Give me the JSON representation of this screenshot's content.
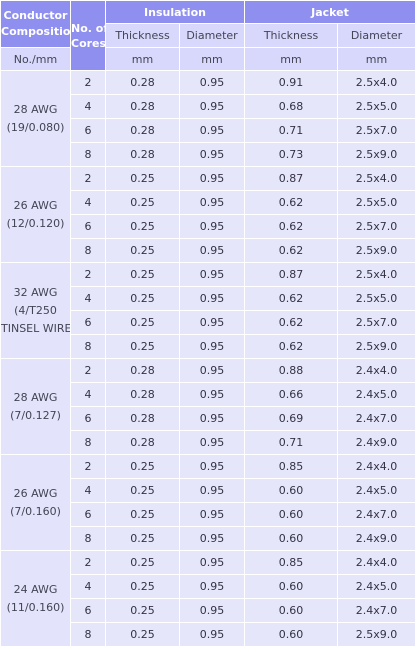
{
  "headers": {
    "conductor_line1": "Conductor",
    "conductor_line2": "Composition",
    "cores_line1": "No. of",
    "cores_line2": "Cores",
    "insulation": "Insulation",
    "jacket": "Jacket",
    "ins_thickness": "Thickness",
    "ins_diameter": "Diameter",
    "jac_thickness": "Thickness",
    "jac_diameter": "Diameter",
    "unit_conductor": "No./mm",
    "unit_ins_thickness": "mm",
    "unit_ins_diameter": "mm",
    "unit_jac_thickness": "mm",
    "unit_jac_diameter": "mm"
  },
  "groups": [
    {
      "label_lines": [
        "28 AWG",
        "(19/0.080)"
      ],
      "rows": [
        {
          "cores": "2",
          "ins_thickness": "0.28",
          "ins_diameter": "0.95",
          "jac_thickness": "0.91",
          "jac_diameter": "2.5x4.0"
        },
        {
          "cores": "4",
          "ins_thickness": "0.28",
          "ins_diameter": "0.95",
          "jac_thickness": "0.68",
          "jac_diameter": "2.5x5.0"
        },
        {
          "cores": "6",
          "ins_thickness": "0.28",
          "ins_diameter": "0.95",
          "jac_thickness": "0.71",
          "jac_diameter": "2.5x7.0"
        },
        {
          "cores": "8",
          "ins_thickness": "0.28",
          "ins_diameter": "0.95",
          "jac_thickness": "0.73",
          "jac_diameter": "2.5x9.0"
        }
      ]
    },
    {
      "label_lines": [
        "26 AWG",
        "(12/0.120)"
      ],
      "rows": [
        {
          "cores": "2",
          "ins_thickness": "0.25",
          "ins_diameter": "0.95",
          "jac_thickness": "0.87",
          "jac_diameter": "2.5x4.0"
        },
        {
          "cores": "4",
          "ins_thickness": "0.25",
          "ins_diameter": "0.95",
          "jac_thickness": "0.62",
          "jac_diameter": "2.5x5.0"
        },
        {
          "cores": "6",
          "ins_thickness": "0.25",
          "ins_diameter": "0.95",
          "jac_thickness": "0.62",
          "jac_diameter": "2.5x7.0"
        },
        {
          "cores": "8",
          "ins_thickness": "0.25",
          "ins_diameter": "0.95",
          "jac_thickness": "0.62",
          "jac_diameter": "2.5x9.0"
        }
      ]
    },
    {
      "label_lines": [
        "32 AWG",
        "(4/T250",
        "TINSEL WIRE)"
      ],
      "rows": [
        {
          "cores": "2",
          "ins_thickness": "0.25",
          "ins_diameter": "0.95",
          "jac_thickness": "0.87",
          "jac_diameter": "2.5x4.0"
        },
        {
          "cores": "4",
          "ins_thickness": "0.25",
          "ins_diameter": "0.95",
          "jac_thickness": "0.62",
          "jac_diameter": "2.5x5.0"
        },
        {
          "cores": "6",
          "ins_thickness": "0.25",
          "ins_diameter": "0.95",
          "jac_thickness": "0.62",
          "jac_diameter": "2.5x7.0"
        },
        {
          "cores": "8",
          "ins_thickness": "0.25",
          "ins_diameter": "0.95",
          "jac_thickness": "0.62",
          "jac_diameter": "2.5x9.0"
        }
      ]
    },
    {
      "label_lines": [
        "28 AWG",
        "(7/0.127)"
      ],
      "rows": [
        {
          "cores": "2",
          "ins_thickness": "0.28",
          "ins_diameter": "0.95",
          "jac_thickness": "0.88",
          "jac_diameter": "2.4x4.0"
        },
        {
          "cores": "4",
          "ins_thickness": "0.28",
          "ins_diameter": "0.95",
          "jac_thickness": "0.66",
          "jac_diameter": "2.4x5.0"
        },
        {
          "cores": "6",
          "ins_thickness": "0.28",
          "ins_diameter": "0.95",
          "jac_thickness": "0.69",
          "jac_diameter": "2.4x7.0"
        },
        {
          "cores": "8",
          "ins_thickness": "0.28",
          "ins_diameter": "0.95",
          "jac_thickness": "0.71",
          "jac_diameter": "2.4x9.0"
        }
      ]
    },
    {
      "label_lines": [
        "26 AWG",
        "(7/0.160)"
      ],
      "rows": [
        {
          "cores": "2",
          "ins_thickness": "0.25",
          "ins_diameter": "0.95",
          "jac_thickness": "0.85",
          "jac_diameter": "2.4x4.0"
        },
        {
          "cores": "4",
          "ins_thickness": "0.25",
          "ins_diameter": "0.95",
          "jac_thickness": "0.60",
          "jac_diameter": "2.4x5.0"
        },
        {
          "cores": "6",
          "ins_thickness": "0.25",
          "ins_diameter": "0.95",
          "jac_thickness": "0.60",
          "jac_diameter": "2.4x7.0"
        },
        {
          "cores": "8",
          "ins_thickness": "0.25",
          "ins_diameter": "0.95",
          "jac_thickness": "0.60",
          "jac_diameter": "2.4x9.0"
        }
      ]
    },
    {
      "label_lines": [
        "24 AWG",
        "(11/0.160)"
      ],
      "rows": [
        {
          "cores": "2",
          "ins_thickness": "0.25",
          "ins_diameter": "0.95",
          "jac_thickness": "0.85",
          "jac_diameter": "2.4x4.0"
        },
        {
          "cores": "4",
          "ins_thickness": "0.25",
          "ins_diameter": "0.95",
          "jac_thickness": "0.60",
          "jac_diameter": "2.4x5.0"
        },
        {
          "cores": "6",
          "ins_thickness": "0.25",
          "ins_diameter": "0.95",
          "jac_thickness": "0.60",
          "jac_diameter": "2.4x7.0"
        },
        {
          "cores": "8",
          "ins_thickness": "0.25",
          "ins_diameter": "0.95",
          "jac_thickness": "0.60",
          "jac_diameter": "2.5x9.0"
        }
      ]
    }
  ]
}
